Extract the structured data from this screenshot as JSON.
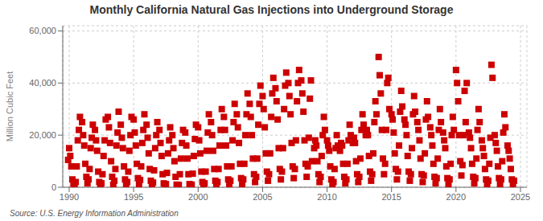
{
  "chart_data": {
    "type": "scatter",
    "title": "Monthly California Natural Gas Injections into Underground Storage",
    "ylabel": "Million Cubic Feet",
    "annotations": [
      "Source: U.S. Energy Information Administration"
    ],
    "color": "#cc0000",
    "marker": "square",
    "grid": true,
    "xlim": [
      1989.5,
      2025.5
    ],
    "xticks": [
      1990,
      1995,
      2000,
      2005,
      2010,
      2015,
      2020,
      2025
    ],
    "ylim": [
      0,
      62000
    ],
    "yticks": [
      0,
      {
        "value": 20000,
        "label": "20,000"
      },
      {
        "value": 40000,
        "label": "40,000"
      },
      {
        "value": 60000,
        "label": "60,000"
      }
    ],
    "x": [
      1989.917,
      1990.0,
      1990.083,
      1990.167,
      1990.25,
      1990.333,
      1990.417,
      1990.5,
      1990.583,
      1990.667,
      1990.75,
      1990.833,
      1991.0,
      1991.083,
      1991.167,
      1991.25,
      1991.333,
      1991.417,
      1991.5,
      1991.583,
      1991.667,
      1991.75,
      1991.833,
      1992.0,
      1992.083,
      1992.167,
      1992.25,
      1992.333,
      1992.417,
      1992.5,
      1992.583,
      1992.667,
      1992.75,
      1992.833,
      1993.0,
      1993.083,
      1993.167,
      1993.25,
      1993.333,
      1993.417,
      1993.5,
      1993.583,
      1993.667,
      1993.75,
      1993.833,
      1994.0,
      1994.083,
      1994.167,
      1994.25,
      1994.333,
      1994.417,
      1994.5,
      1994.583,
      1994.667,
      1994.75,
      1994.833,
      1995.0,
      1995.083,
      1995.167,
      1995.25,
      1995.333,
      1995.417,
      1995.5,
      1995.583,
      1995.667,
      1995.75,
      1995.833,
      1996.0,
      1996.083,
      1996.167,
      1996.25,
      1996.333,
      1996.417,
      1996.5,
      1996.583,
      1996.667,
      1996.75,
      1996.833,
      1997.0,
      1997.083,
      1997.167,
      1997.25,
      1997.333,
      1997.417,
      1997.5,
      1997.583,
      1997.667,
      1997.75,
      1997.833,
      1998.0,
      1998.083,
      1998.167,
      1998.25,
      1998.333,
      1998.417,
      1998.5,
      1998.583,
      1998.667,
      1998.75,
      1998.833,
      1999.0,
      1999.083,
      1999.167,
      1999.25,
      1999.333,
      1999.417,
      1999.5,
      1999.583,
      1999.667,
      1999.75,
      1999.833,
      2000.0,
      2000.083,
      2000.167,
      2000.25,
      2000.333,
      2000.417,
      2000.5,
      2000.583,
      2000.667,
      2000.75,
      2000.833,
      2001.0,
      2001.083,
      2001.167,
      2001.25,
      2001.333,
      2001.417,
      2001.5,
      2001.583,
      2001.667,
      2001.75,
      2001.833,
      2002.0,
      2002.083,
      2002.167,
      2002.25,
      2002.333,
      2002.417,
      2002.5,
      2002.583,
      2002.667,
      2002.75,
      2002.833,
      2003.0,
      2003.083,
      2003.167,
      2003.25,
      2003.333,
      2003.417,
      2003.5,
      2003.583,
      2003.667,
      2003.75,
      2003.833,
      2004.0,
      2004.083,
      2004.167,
      2004.25,
      2004.333,
      2004.417,
      2004.5,
      2004.583,
      2004.667,
      2004.75,
      2004.833,
      2005.0,
      2005.083,
      2005.167,
      2005.25,
      2005.333,
      2005.417,
      2005.5,
      2005.583,
      2005.667,
      2005.75,
      2005.833,
      2006.0,
      2006.083,
      2006.167,
      2006.25,
      2006.333,
      2006.417,
      2006.5,
      2006.583,
      2006.667,
      2006.75,
      2006.833,
      2007.0,
      2007.083,
      2007.167,
      2007.25,
      2007.333,
      2007.417,
      2007.5,
      2007.583,
      2007.667,
      2007.75,
      2007.833,
      2008.0,
      2008.083,
      2008.167,
      2008.25,
      2008.333,
      2008.417,
      2008.5,
      2008.583,
      2008.667,
      2008.75,
      2008.833,
      2009.0,
      2009.083,
      2009.167,
      2009.25,
      2009.333,
      2009.417,
      2009.5,
      2009.583,
      2009.667,
      2009.75,
      2009.833,
      2010.0,
      2010.083,
      2010.167,
      2010.25,
      2010.333,
      2010.417,
      2010.5,
      2010.583,
      2010.667,
      2010.75,
      2010.833,
      2011.0,
      2011.083,
      2011.167,
      2011.25,
      2011.333,
      2011.417,
      2011.5,
      2011.583,
      2011.667,
      2011.75,
      2011.833,
      2012.0,
      2012.083,
      2012.167,
      2012.25,
      2012.333,
      2012.417,
      2012.5,
      2012.583,
      2012.667,
      2012.75,
      2012.833,
      2013.0,
      2013.083,
      2013.167,
      2013.25,
      2013.333,
      2013.417,
      2013.5,
      2013.583,
      2013.667,
      2013.75,
      2013.833,
      2014.0,
      2014.083,
      2014.167,
      2014.25,
      2014.333,
      2014.417,
      2014.5,
      2014.583,
      2014.667,
      2014.75,
      2014.833,
      2015.0,
      2015.083,
      2015.167,
      2015.25,
      2015.333,
      2015.417,
      2015.5,
      2015.583,
      2015.667,
      2015.75,
      2015.833,
      2016.0,
      2016.083,
      2016.167,
      2016.25,
      2016.333,
      2016.417,
      2016.5,
      2016.583,
      2016.667,
      2016.75,
      2016.833,
      2017.0,
      2017.083,
      2017.167,
      2017.25,
      2017.333,
      2017.417,
      2017.5,
      2017.583,
      2017.667,
      2017.75,
      2017.833,
      2018.0,
      2018.083,
      2018.167,
      2018.25,
      2018.333,
      2018.417,
      2018.5,
      2018.583,
      2018.667,
      2018.75,
      2018.833,
      2019.0,
      2019.083,
      2019.167,
      2019.25,
      2019.333,
      2019.417,
      2019.5,
      2019.583,
      2019.667,
      2019.75,
      2019.833,
      2020.0,
      2020.083,
      2020.167,
      2020.25,
      2020.333,
      2020.417,
      2020.5,
      2020.583,
      2020.667,
      2020.75,
      2020.833,
      2021.0,
      2021.083,
      2021.167,
      2021.25,
      2021.333,
      2021.417,
      2021.5,
      2021.583,
      2021.667,
      2021.75,
      2021.833,
      2022.0,
      2022.083,
      2022.167,
      2022.25,
      2022.333,
      2022.417,
      2022.5,
      2022.583,
      2022.667,
      2022.75,
      2022.833,
      2023.0,
      2023.083,
      2023.167,
      2023.25,
      2023.333,
      2023.417,
      2023.5,
      2023.583,
      2023.667,
      2023.75,
      2023.833,
      2024.0,
      2024.083,
      2024.167,
      2024.25,
      2024.333,
      2024.417,
      2024.5
    ],
    "values": [
      10500,
      15000,
      12000,
      8000,
      3000,
      1000,
      500,
      2000,
      8000,
      18000,
      22000,
      27000,
      25000,
      20000,
      16000,
      9000,
      4000,
      1500,
      3000,
      7000,
      15000,
      19000,
      24000,
      22000,
      18000,
      14000,
      6000,
      2000,
      500,
      1500,
      5000,
      12000,
      18000,
      26000,
      27000,
      23000,
      17000,
      10000,
      4000,
      1000,
      2500,
      7000,
      16000,
      21000,
      29000,
      24000,
      19000,
      15000,
      8000,
      3000,
      800,
      2000,
      6000,
      14000,
      20000,
      27000,
      26000,
      21000,
      16000,
      9000,
      3500,
      1200,
      2800,
      8000,
      17000,
      22000,
      28000,
      24000,
      19000,
      13000,
      7000,
      2500,
      700,
      1800,
      6500,
      15000,
      20000,
      25000,
      22000,
      17000,
      12000,
      5000,
      1500,
      400,
      1200,
      5500,
      13000,
      18000,
      23000,
      20000,
      15000,
      10000,
      4000,
      1000,
      300,
      900,
      5000,
      11000,
      17000,
      22000,
      21000,
      16000,
      11000,
      5000,
      1200,
      350,
      1000,
      5200,
      12000,
      18500,
      24000,
      23000,
      18000,
      13000,
      6000,
      2000,
      600,
      1500,
      6000,
      14000,
      21000,
      28000,
      25000,
      20000,
      14000,
      7000,
      2500,
      800,
      2000,
      7000,
      16000,
      22000,
      30000,
      27000,
      22000,
      16000,
      8000,
      3000,
      1000,
      2500,
      8000,
      18000,
      25000,
      32000,
      28000,
      23000,
      17000,
      9000,
      3500,
      1200,
      3000,
      9000,
      20000,
      28000,
      36000,
      32000,
      27000,
      20000,
      11000,
      5000,
      2000,
      4000,
      11000,
      24000,
      32000,
      39000,
      35000,
      30000,
      23000,
      13000,
      6000,
      2500,
      5000,
      13000,
      27000,
      36000,
      42000,
      38000,
      33000,
      26000,
      15000,
      7000,
      3000,
      6000,
      15000,
      30000,
      39000,
      44000,
      40000,
      35000,
      28000,
      17000,
      8000,
      3500,
      7000,
      18000,
      33000,
      40000,
      45000,
      41000,
      36000,
      29000,
      18000,
      9000,
      4000,
      8000,
      19000,
      34000,
      41000,
      10000,
      15000,
      18000,
      16000,
      10000,
      5000,
      2000,
      4000,
      12000,
      20000,
      27000,
      22000,
      18000,
      16000,
      14000,
      8000,
      3000,
      1000,
      2000,
      7000,
      15000,
      20000,
      16000,
      14000,
      17000,
      16000,
      9000,
      4000,
      1500,
      3000,
      9000,
      18000,
      24000,
      20000,
      17000,
      19000,
      17000,
      10000,
      5000,
      2000,
      4000,
      11000,
      22000,
      28000,
      24000,
      20000,
      22000,
      20000,
      12000,
      6000,
      2500,
      5000,
      13000,
      25000,
      33000,
      28000,
      50000,
      43000,
      36000,
      22000,
      11000,
      5000,
      9000,
      22000,
      40000,
      42000,
      30000,
      28000,
      26000,
      21000,
      13000,
      7000,
      3000,
      6000,
      16000,
      29000,
      37000,
      31000,
      26000,
      24000,
      20000,
      12000,
      6000,
      2500,
      5000,
      15000,
      28000,
      35000,
      29000,
      25000,
      22000,
      18000,
      11000,
      5000,
      2000,
      4500,
      13000,
      26000,
      33000,
      27000,
      23000,
      20000,
      16000,
      9000,
      4000,
      1500,
      3500,
      11000,
      22000,
      30000,
      25000,
      21000,
      18000,
      15000,
      8000,
      3500,
      1200,
      3000,
      9000,
      20000,
      27000,
      22000,
      45000,
      40000,
      33000,
      20000,
      10000,
      4500,
      8500,
      20000,
      37000,
      25000,
      40000,
      21000,
      19000,
      15000,
      9000,
      4000,
      1500,
      3500,
      11000,
      22000,
      30000,
      25000,
      18000,
      15000,
      12000,
      7000,
      3000,
      1000,
      2500,
      9000,
      19000,
      47000,
      42000,
      20000,
      17000,
      14000,
      8000,
      3500,
      1200,
      3000,
      10000,
      21000,
      28000,
      23000,
      16000,
      14000,
      11000,
      7000,
      3000,
      1000,
      2500
    ]
  }
}
